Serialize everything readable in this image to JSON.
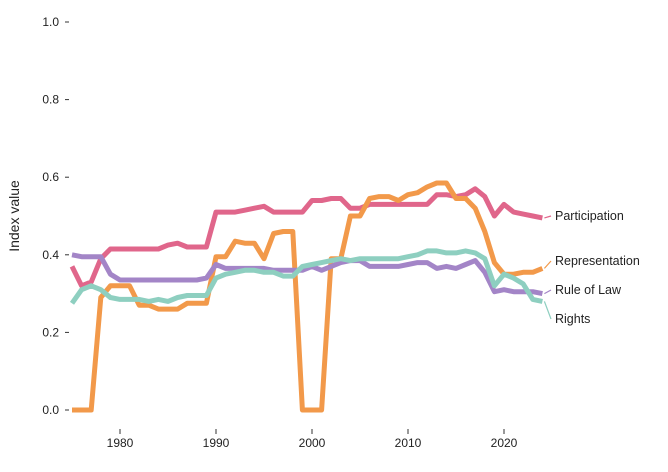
{
  "chart_data": {
    "type": "line",
    "title": "",
    "xlabel": "",
    "ylabel": "Index value",
    "xlim": [
      1975,
      2024
    ],
    "ylim": [
      0,
      1
    ],
    "x_ticks": [
      1980,
      1990,
      2000,
      2010,
      2020
    ],
    "y_ticks": [
      "0.0",
      "0.2",
      "0.4",
      "0.6",
      "0.8",
      "1.0"
    ],
    "legend": "direct labels at line ends (right)",
    "grid": false,
    "x": [
      1975,
      1976,
      1977,
      1978,
      1979,
      1980,
      1981,
      1982,
      1983,
      1984,
      1985,
      1986,
      1987,
      1988,
      1989,
      1990,
      1991,
      1992,
      1993,
      1994,
      1995,
      1996,
      1997,
      1998,
      1999,
      2000,
      2001,
      2002,
      2003,
      2004,
      2005,
      2006,
      2007,
      2008,
      2009,
      2010,
      2011,
      2012,
      2013,
      2014,
      2015,
      2016,
      2017,
      2018,
      2019,
      2020,
      2021,
      2022,
      2023,
      2024
    ],
    "series": [
      {
        "name": "Participation",
        "color": "#e0668b",
        "values": [
          0.37,
          0.32,
          0.33,
          0.39,
          0.415,
          0.415,
          0.415,
          0.415,
          0.415,
          0.415,
          0.425,
          0.43,
          0.42,
          0.42,
          0.42,
          0.51,
          0.51,
          0.51,
          0.515,
          0.52,
          0.525,
          0.51,
          0.51,
          0.51,
          0.51,
          0.54,
          0.54,
          0.545,
          0.545,
          0.52,
          0.52,
          0.53,
          0.53,
          0.53,
          0.53,
          0.53,
          0.53,
          0.53,
          0.555,
          0.555,
          0.55,
          0.555,
          0.57,
          0.55,
          0.5,
          0.53,
          0.51,
          0.505,
          0.5,
          0.495
        ]
      },
      {
        "name": "Representation",
        "color": "#f2994a",
        "values": [
          0.0,
          0.0,
          0.0,
          0.29,
          0.32,
          0.32,
          0.32,
          0.27,
          0.27,
          0.26,
          0.26,
          0.26,
          0.275,
          0.275,
          0.275,
          0.395,
          0.395,
          0.435,
          0.43,
          0.43,
          0.39,
          0.455,
          0.46,
          0.46,
          0.0,
          0.0,
          0.0,
          0.39,
          0.39,
          0.5,
          0.5,
          0.545,
          0.55,
          0.55,
          0.54,
          0.555,
          0.56,
          0.575,
          0.585,
          0.585,
          0.545,
          0.545,
          0.52,
          0.46,
          0.38,
          0.35,
          0.35,
          0.355,
          0.355,
          0.365
        ]
      },
      {
        "name": "Rule of Law",
        "color": "#a385c7",
        "values": [
          0.4,
          0.395,
          0.395,
          0.395,
          0.35,
          0.335,
          0.335,
          0.335,
          0.335,
          0.335,
          0.335,
          0.335,
          0.335,
          0.335,
          0.34,
          0.375,
          0.365,
          0.365,
          0.365,
          0.365,
          0.365,
          0.36,
          0.36,
          0.36,
          0.36,
          0.37,
          0.36,
          0.37,
          0.38,
          0.385,
          0.385,
          0.37,
          0.37,
          0.37,
          0.37,
          0.375,
          0.38,
          0.38,
          0.365,
          0.37,
          0.365,
          0.375,
          0.385,
          0.355,
          0.305,
          0.31,
          0.305,
          0.305,
          0.305,
          0.3
        ]
      },
      {
        "name": "Rights",
        "color": "#8ecfc0",
        "values": [
          0.275,
          0.31,
          0.32,
          0.31,
          0.29,
          0.285,
          0.285,
          0.285,
          0.28,
          0.285,
          0.28,
          0.29,
          0.295,
          0.295,
          0.295,
          0.34,
          0.35,
          0.355,
          0.36,
          0.36,
          0.355,
          0.355,
          0.345,
          0.345,
          0.37,
          0.375,
          0.38,
          0.385,
          0.39,
          0.385,
          0.39,
          0.39,
          0.39,
          0.39,
          0.39,
          0.395,
          0.4,
          0.41,
          0.41,
          0.405,
          0.405,
          0.41,
          0.405,
          0.39,
          0.32,
          0.35,
          0.34,
          0.325,
          0.285,
          0.28
        ]
      }
    ]
  }
}
